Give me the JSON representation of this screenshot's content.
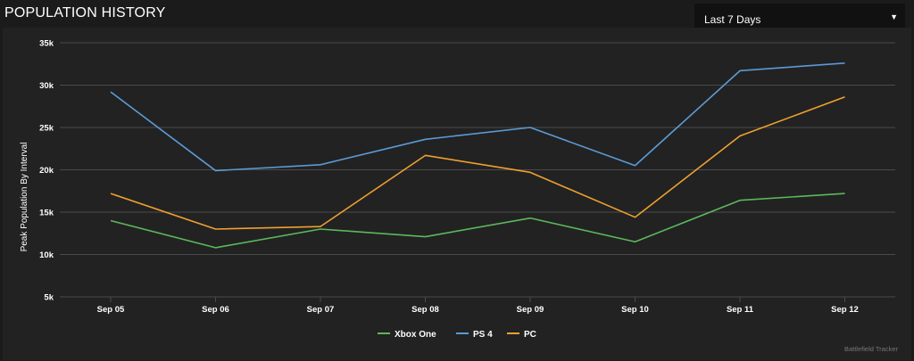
{
  "header": {
    "title": "POPULATION HISTORY"
  },
  "range_select": {
    "value": "Last 7 Days",
    "caret": "▼"
  },
  "credit": "Battlefield Tracker",
  "colors": {
    "background": "#1b1b1b",
    "panel": "#222222",
    "grid": "#4a4a4a",
    "text": "#ffffff"
  },
  "chart_data": {
    "type": "line",
    "title": "",
    "xlabel": "",
    "ylabel": "Peak Population By Interval",
    "categories": [
      "Sep 05",
      "Sep 06",
      "Sep 07",
      "Sep 08",
      "Sep 09",
      "Sep 10",
      "Sep 11",
      "Sep 12"
    ],
    "ylim": [
      5000,
      35000
    ],
    "yticks": [
      {
        "value": 5000,
        "label": "5k"
      },
      {
        "value": 10000,
        "label": "10k"
      },
      {
        "value": 15000,
        "label": "15k"
      },
      {
        "value": 20000,
        "label": "20k"
      },
      {
        "value": 25000,
        "label": "25k"
      },
      {
        "value": 30000,
        "label": "30k"
      },
      {
        "value": 35000,
        "label": "35k"
      }
    ],
    "grid": true,
    "legend_position": "bottom",
    "series": [
      {
        "name": "Xbox One",
        "color": "#5cb85c",
        "values": [
          14000,
          10800,
          13000,
          12100,
          14300,
          11500,
          16400,
          17200
        ]
      },
      {
        "name": "PS 4",
        "color": "#5b9bd5",
        "values": [
          29200,
          19900,
          20600,
          23600,
          25000,
          20500,
          31700,
          32600
        ]
      },
      {
        "name": "PC",
        "color": "#f0a030",
        "values": [
          17200,
          13000,
          13300,
          21700,
          19700,
          14400,
          24000,
          28600
        ]
      }
    ]
  }
}
